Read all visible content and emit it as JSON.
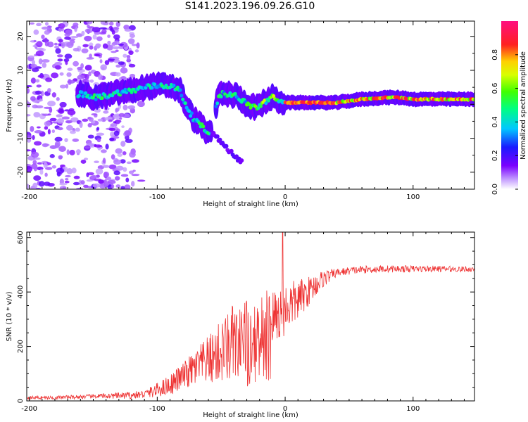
{
  "title": "S141.2023.196.09.26.G10",
  "chart_data": [
    {
      "type": "heatmap",
      "xlabel": "Height of straight line (km)",
      "ylabel": "Frequency (Hz)",
      "xlim": [
        -202,
        148
      ],
      "ylim": [
        -25,
        24.5
      ],
      "xticks": [
        -200,
        -100,
        0,
        100
      ],
      "yticks": [
        -20,
        -10,
        0,
        10,
        20
      ],
      "colorbar": {
        "label": "Normalized spectral amplitude",
        "range": [
          0,
          1
        ],
        "ticks": [
          "0.0",
          "0.2",
          "0.4",
          "0.6",
          "0.8"
        ],
        "colormap": "rainbow (white-purple-blue-cyan-green-yellow-red-magenta)"
      },
      "ridge": [
        [
          -160,
          3
        ],
        [
          -150,
          2
        ],
        [
          -140,
          2.5
        ],
        [
          -130,
          3.5
        ],
        [
          -120,
          4
        ],
        [
          -110,
          5
        ],
        [
          -100,
          5.5
        ],
        [
          -90,
          5.5
        ],
        [
          -82,
          4
        ],
        [
          -78,
          0
        ],
        [
          -72,
          -4
        ],
        [
          -64,
          -7
        ],
        [
          -58,
          -9
        ],
        [
          -52,
          3
        ],
        [
          -45,
          3
        ],
        [
          -38,
          2.5
        ],
        [
          -30,
          0
        ],
        [
          -22,
          -1
        ],
        [
          -15,
          1
        ],
        [
          -10,
          2
        ],
        [
          -5,
          1
        ],
        [
          0,
          0.5
        ],
        [
          10,
          0.5
        ],
        [
          20,
          0.5
        ],
        [
          40,
          0.5
        ],
        [
          60,
          1.5
        ],
        [
          80,
          2
        ],
        [
          90,
          2
        ],
        [
          100,
          1.5
        ],
        [
          120,
          1.5
        ],
        [
          148,
          1.5
        ]
      ],
      "secondary_branch": [
        [
          -58,
          -8
        ],
        [
          -48,
          -12
        ],
        [
          -40,
          -15
        ],
        [
          -34,
          -17
        ]
      ]
    },
    {
      "type": "line",
      "xlabel": "Height of straight line (km)",
      "ylabel": "SNR (10 * v/v)",
      "xlim": [
        -202,
        148
      ],
      "ylim": [
        0,
        620
      ],
      "xticks": [
        -200,
        -100,
        0,
        100
      ],
      "yticks": [
        0,
        200,
        400,
        600
      ],
      "color": "#ee3333",
      "envelope": [
        [
          -202,
          12
        ],
        [
          -180,
          12
        ],
        [
          -160,
          15
        ],
        [
          -140,
          18
        ],
        [
          -120,
          20
        ],
        [
          -110,
          25
        ],
        [
          -100,
          40
        ],
        [
          -90,
          60
        ],
        [
          -80,
          90
        ],
        [
          -70,
          120
        ],
        [
          -60,
          150
        ],
        [
          -50,
          180
        ],
        [
          -40,
          210
        ],
        [
          -30,
          240
        ],
        [
          -20,
          270
        ],
        [
          -10,
          300
        ],
        [
          0,
          340
        ],
        [
          10,
          370
        ],
        [
          20,
          410
        ],
        [
          30,
          450
        ],
        [
          40,
          470
        ],
        [
          50,
          478
        ],
        [
          60,
          482
        ],
        [
          80,
          485
        ],
        [
          100,
          485
        ],
        [
          120,
          485
        ],
        [
          148,
          483
        ]
      ],
      "noise_amplitude": [
        [
          -202,
          6
        ],
        [
          -150,
          8
        ],
        [
          -110,
          15
        ],
        [
          -80,
          50
        ],
        [
          -60,
          90
        ],
        [
          -40,
          150
        ],
        [
          -20,
          130
        ],
        [
          0,
          100
        ],
        [
          20,
          50
        ],
        [
          40,
          15
        ],
        [
          148,
          10
        ]
      ],
      "peak": {
        "x": -2,
        "y": 620
      }
    }
  ]
}
